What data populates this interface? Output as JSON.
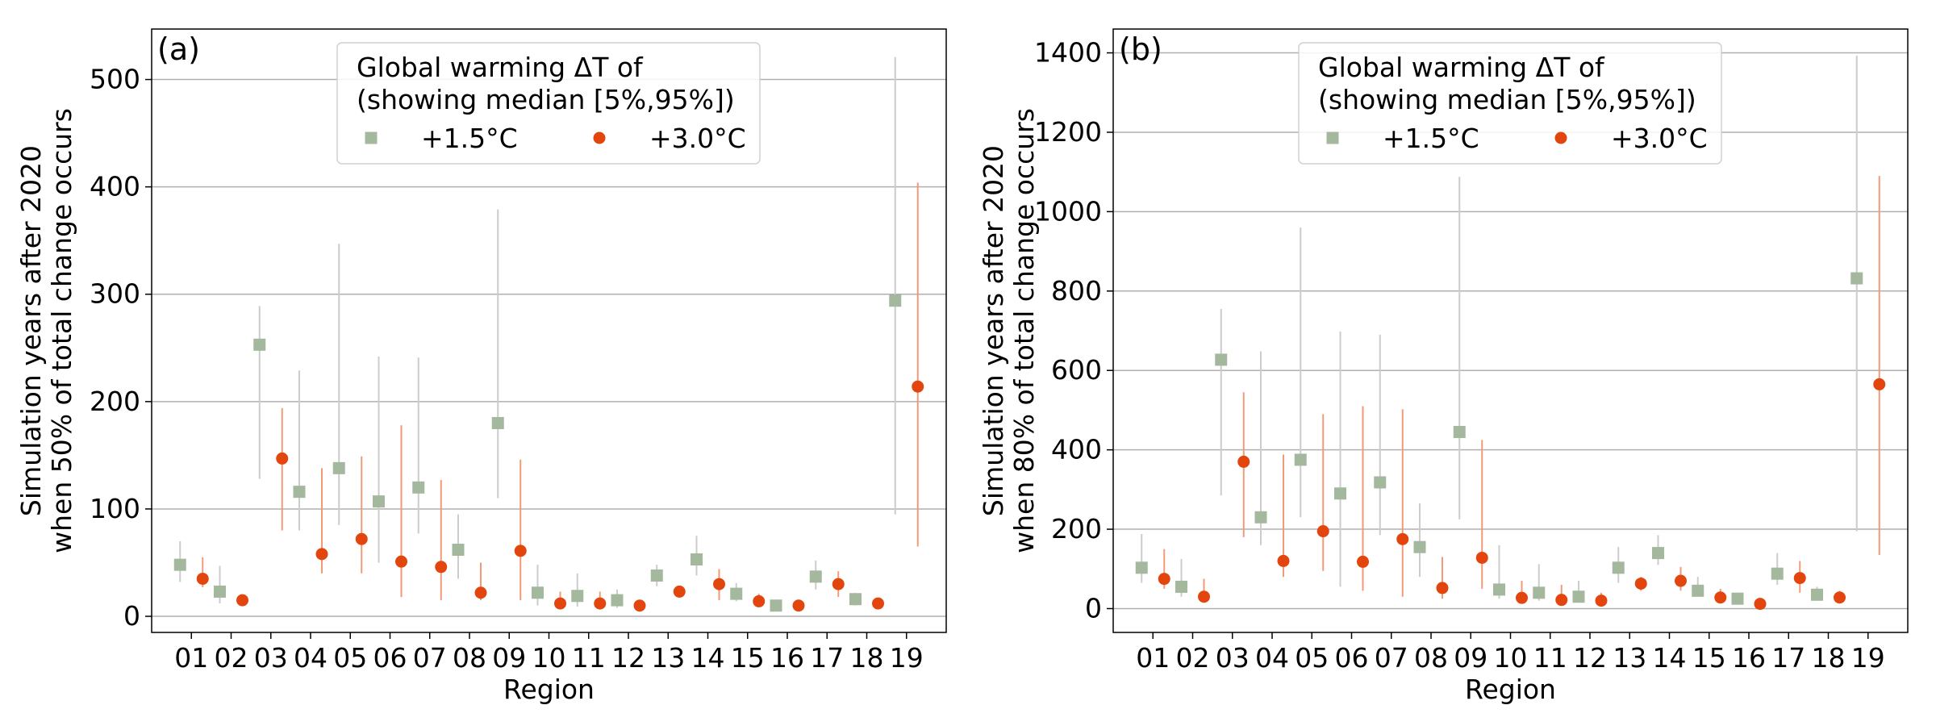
{
  "chart_data": [
    {
      "type": "scatter",
      "panel_label": "(a)",
      "xlabel": "Region",
      "ylabel": [
        "Simulation years after 2020",
        "when 50% of total change occurs"
      ],
      "categories": [
        "01",
        "02",
        "03",
        "04",
        "05",
        "06",
        "07",
        "08",
        "09",
        "10",
        "11",
        "12",
        "13",
        "14",
        "15",
        "16",
        "17",
        "18",
        "19"
      ],
      "ylim": [
        -15,
        547
      ],
      "yticks": [
        0,
        100,
        200,
        300,
        400,
        500
      ],
      "grid": "horizontal",
      "legend": {
        "title": [
          "Global warming ΔT of",
          "(showing median [5%,95%])"
        ],
        "position": "top-center",
        "entries": [
          "+1.5°C",
          "+3.0°C"
        ]
      },
      "series": [
        {
          "name": "+1.5°C",
          "marker": "square",
          "color": "#a3b89d",
          "error_color": "#cccccc",
          "median": [
            48,
            23,
            253,
            116,
            138,
            107,
            120,
            62,
            180,
            22,
            19,
            15,
            38,
            53,
            21,
            10,
            37,
            16,
            294
          ],
          "p5": [
            32,
            12,
            128,
            80,
            85,
            50,
            77,
            35,
            110,
            10,
            9,
            8,
            28,
            38,
            14,
            7,
            25,
            10,
            95
          ],
          "p95": [
            70,
            47,
            289,
            229,
            347,
            242,
            241,
            95,
            379,
            48,
            40,
            25,
            48,
            75,
            31,
            14,
            52,
            22,
            521
          ]
        },
        {
          "name": "+3.0°C",
          "marker": "circle",
          "color": "#e2450d",
          "error_color": "#f29a78",
          "median": [
            35,
            15,
            147,
            58,
            72,
            51,
            46,
            22,
            61,
            12,
            12,
            10,
            23,
            30,
            14,
            10,
            30,
            12,
            214
          ],
          "p5": [
            27,
            10,
            80,
            40,
            40,
            18,
            15,
            15,
            15,
            8,
            8,
            7,
            18,
            15,
            10,
            7,
            18,
            8,
            65
          ],
          "p95": [
            55,
            20,
            194,
            138,
            149,
            178,
            127,
            50,
            146,
            23,
            23,
            13,
            27,
            44,
            21,
            12,
            42,
            17,
            404
          ]
        }
      ]
    },
    {
      "type": "scatter",
      "panel_label": "(b)",
      "xlabel": "Region",
      "ylabel": [
        "Simulation years after 2020",
        "when 80% of total change occurs"
      ],
      "categories": [
        "01",
        "02",
        "03",
        "04",
        "05",
        "06",
        "07",
        "08",
        "09",
        "10",
        "11",
        "12",
        "13",
        "14",
        "15",
        "16",
        "17",
        "18",
        "19"
      ],
      "ylim": [
        -60,
        1460
      ],
      "yticks": [
        0,
        200,
        400,
        600,
        800,
        1000,
        1200,
        1400
      ],
      "grid": "horizontal",
      "legend": {
        "title": [
          "Global warming ΔT of",
          "(showing median [5%,95%])"
        ],
        "position": "top-center",
        "entries": [
          "+1.5°C",
          "+3.0°C"
        ]
      },
      "series": [
        {
          "name": "+1.5°C",
          "marker": "square",
          "color": "#a3b89d",
          "error_color": "#cccccc",
          "median": [
            103,
            55,
            627,
            230,
            375,
            290,
            318,
            155,
            445,
            48,
            40,
            30,
            103,
            140,
            45,
            25,
            88,
            35,
            832
          ],
          "p5": [
            65,
            30,
            285,
            160,
            230,
            55,
            185,
            80,
            225,
            25,
            20,
            15,
            65,
            110,
            30,
            15,
            60,
            20,
            195
          ],
          "p95": [
            188,
            125,
            755,
            648,
            960,
            698,
            690,
            265,
            1088,
            160,
            112,
            70,
            155,
            185,
            80,
            35,
            140,
            55,
            1393
          ]
        },
        {
          "name": "+3.0°C",
          "marker": "circle",
          "color": "#e2450d",
          "error_color": "#f29a78",
          "median": [
            75,
            30,
            370,
            120,
            195,
            118,
            175,
            52,
            128,
            27,
            22,
            20,
            63,
            70,
            28,
            12,
            77,
            28,
            565
          ],
          "p5": [
            50,
            15,
            180,
            80,
            95,
            45,
            30,
            25,
            50,
            12,
            10,
            10,
            45,
            45,
            15,
            5,
            40,
            15,
            135
          ],
          "p95": [
            150,
            75,
            545,
            388,
            490,
            510,
            502,
            130,
            425,
            70,
            60,
            40,
            80,
            105,
            50,
            22,
            120,
            45,
            1090
          ]
        }
      ]
    }
  ]
}
